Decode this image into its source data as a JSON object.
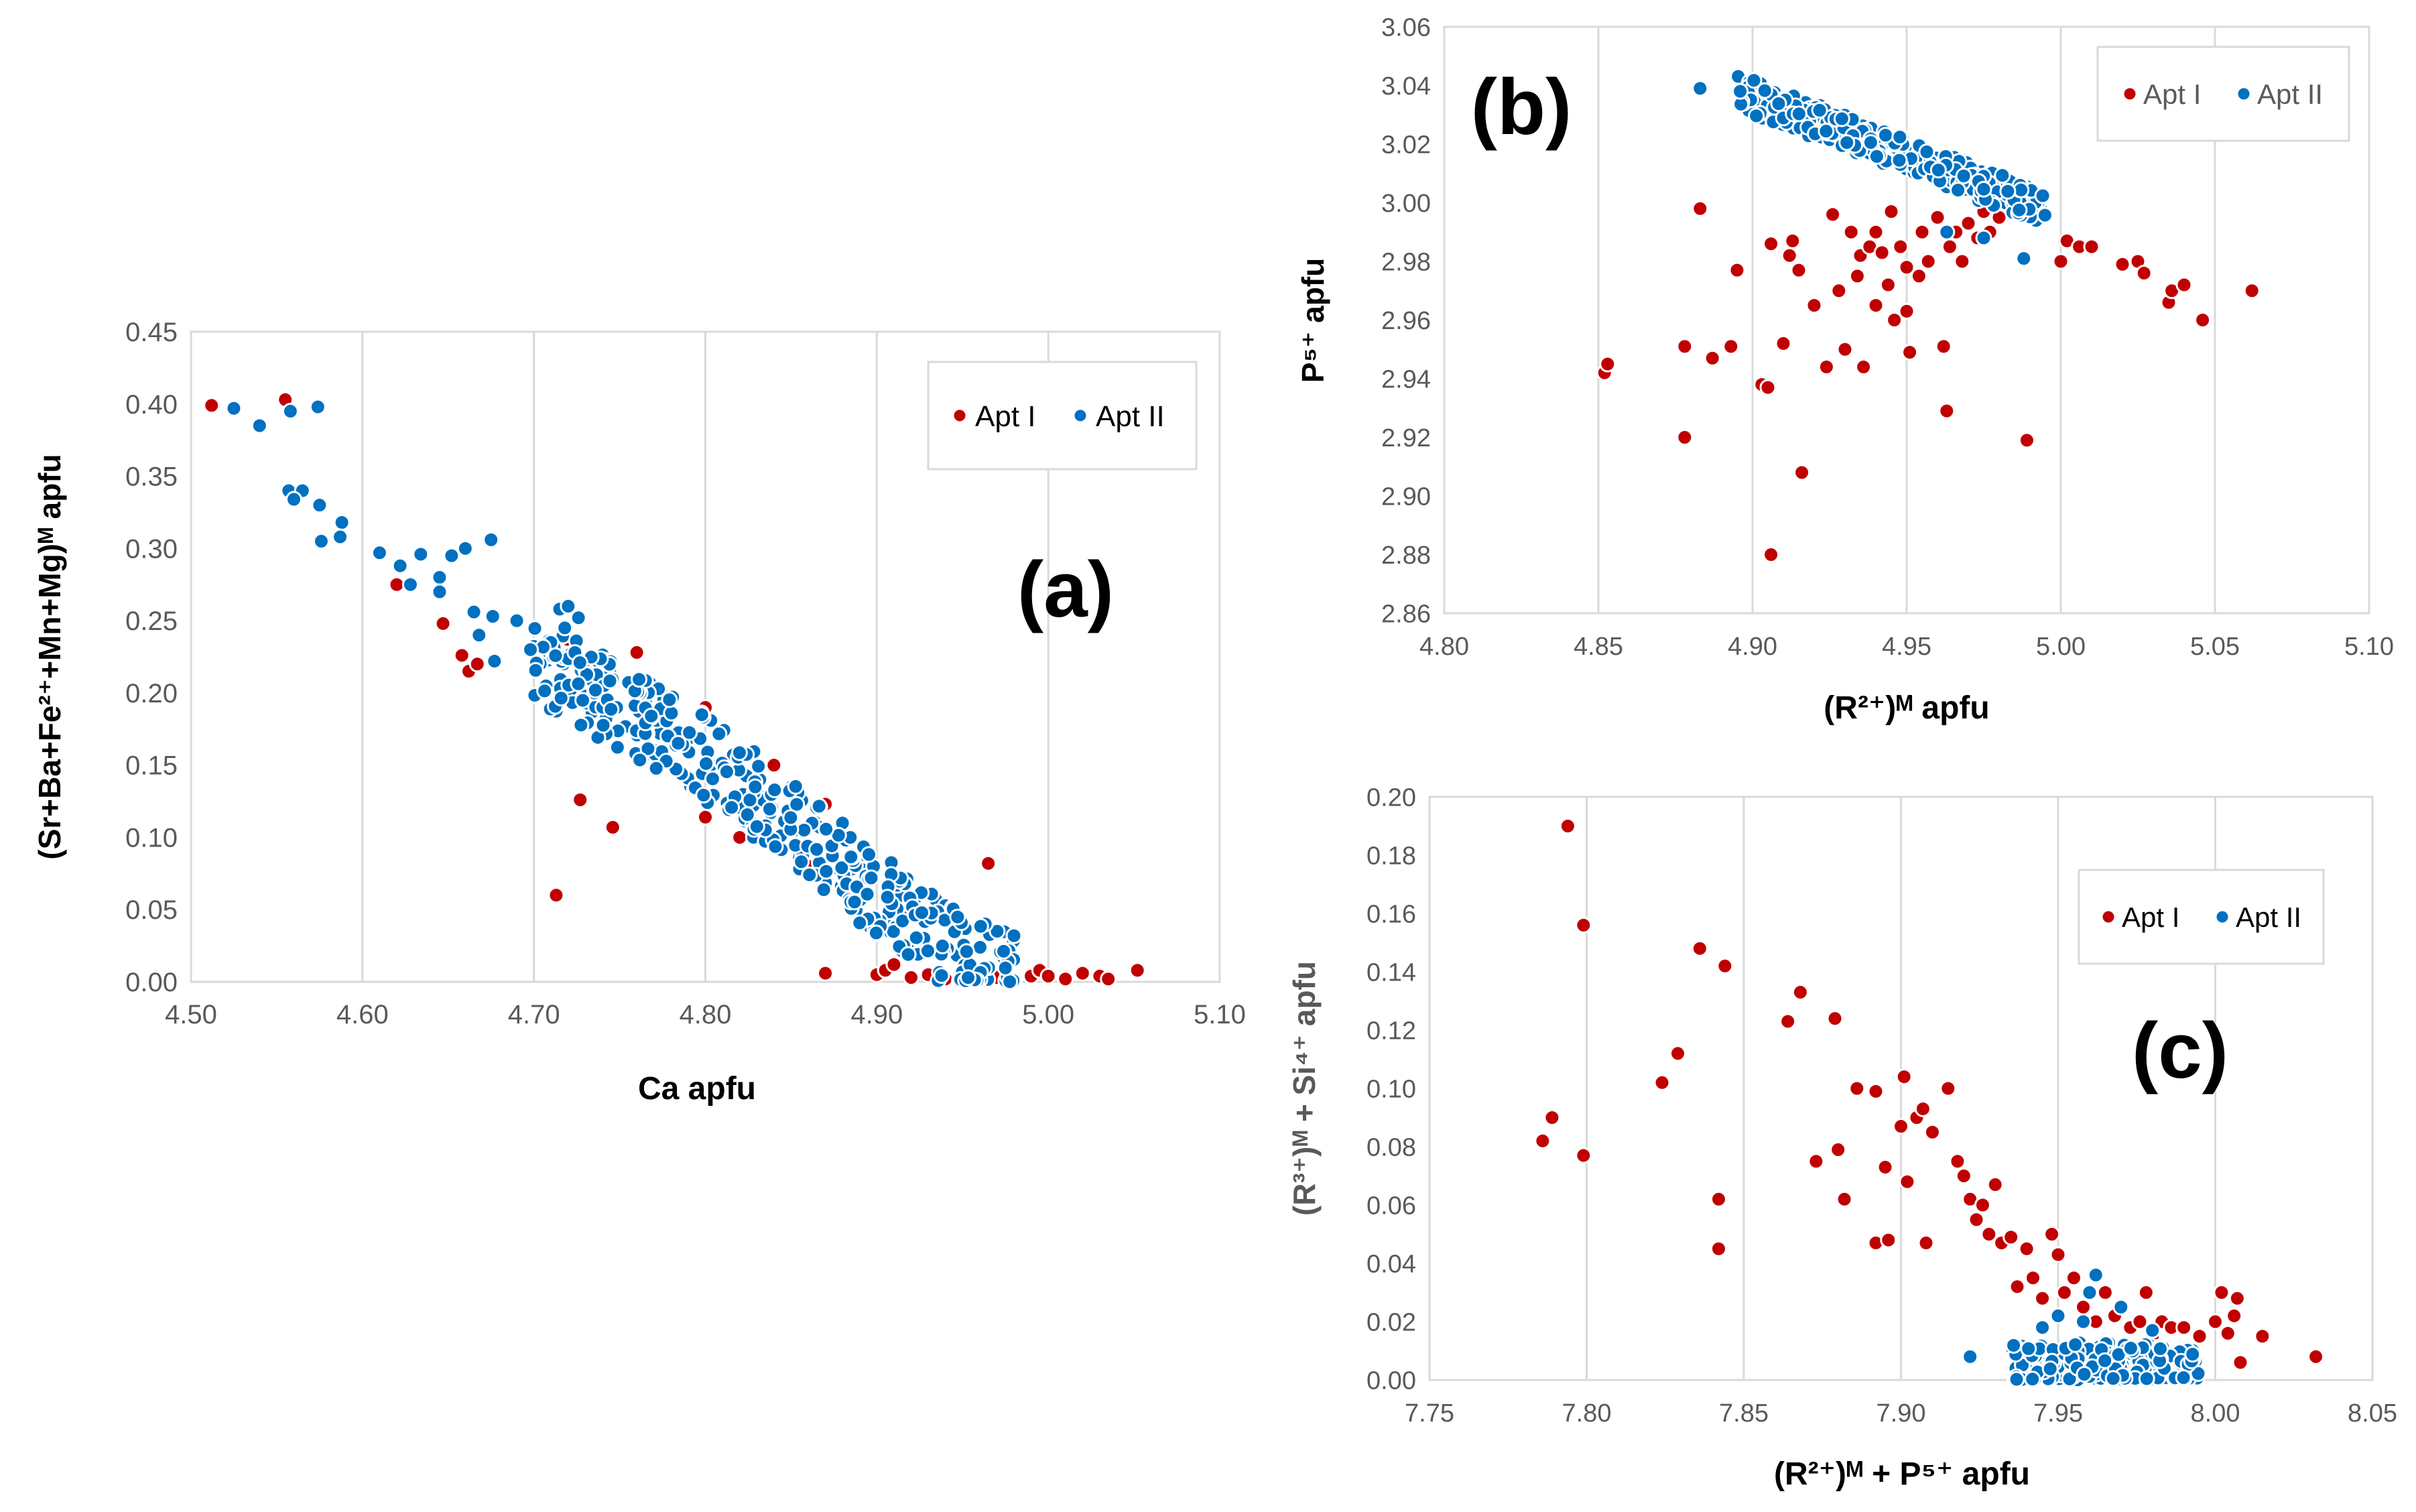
{
  "chart_data": [
    {
      "type": "scatter",
      "panel_label": "(a)",
      "xlabel": "Ca apfu",
      "ylabel": "(Sr+Ba+Fe²⁺+Mn+Mg)ᴹ apfu",
      "xlim": [
        4.5,
        5.1
      ],
      "ylim": [
        0,
        0.45
      ],
      "xticks": [
        "4.50",
        "4.60",
        "4.70",
        "4.80",
        "4.90",
        "5.00",
        "5.10"
      ],
      "yticks": [
        "0.00",
        "0.05",
        "0.10",
        "0.15",
        "0.20",
        "0.25",
        "0.30",
        "0.35",
        "0.40",
        "0.45"
      ],
      "legend": [
        "Apt I",
        "Apt II"
      ],
      "series": [
        {
          "name": "Apt I",
          "color": "#C00000",
          "points": [
            [
              4.512,
              0.399
            ],
            [
              4.555,
              0.403
            ],
            [
              4.62,
              0.275
            ],
            [
              4.647,
              0.248
            ],
            [
              4.658,
              0.226
            ],
            [
              4.662,
              0.215
            ],
            [
              4.667,
              0.22
            ],
            [
              4.713,
              0.06
            ],
            [
              4.727,
              0.126
            ],
            [
              4.746,
              0.107
            ],
            [
              4.72,
              0.196
            ],
            [
              4.72,
              0.237
            ],
            [
              4.76,
              0.228
            ],
            [
              4.8,
              0.19
            ],
            [
              4.8,
              0.114
            ],
            [
              4.82,
              0.1
            ],
            [
              4.84,
              0.15
            ],
            [
              4.86,
              0.08
            ],
            [
              4.87,
              0.006
            ],
            [
              4.87,
              0.123
            ],
            [
              4.9,
              0.005
            ],
            [
              4.905,
              0.008
            ],
            [
              4.91,
              0.012
            ],
            [
              4.92,
              0.003
            ],
            [
              4.93,
              0.005
            ],
            [
              4.94,
              0.002
            ],
            [
              4.95,
              0.004
            ],
            [
              4.965,
              0.082
            ],
            [
              4.97,
              0.003
            ],
            [
              4.98,
              0.002
            ],
            [
              4.99,
              0.004
            ],
            [
              4.995,
              0.008
            ],
            [
              5.0,
              0.004
            ],
            [
              5.01,
              0.002
            ],
            [
              5.02,
              0.006
            ],
            [
              5.03,
              0.004
            ],
            [
              5.035,
              0.002
            ],
            [
              5.052,
              0.008
            ]
          ]
        },
        {
          "name": "Apt II",
          "color": "#0070C0",
          "points": [
            [
              4.525,
              0.397
            ],
            [
              4.54,
              0.385
            ],
            [
              4.558,
              0.395
            ],
            [
              4.574,
              0.398
            ],
            [
              4.557,
              0.34
            ],
            [
              4.565,
              0.34
            ],
            [
              4.56,
              0.334
            ],
            [
              4.575,
              0.33
            ],
            [
              4.588,
              0.318
            ],
            [
              4.576,
              0.305
            ],
            [
              4.587,
              0.308
            ],
            [
              4.61,
              0.297
            ],
            [
              4.622,
              0.288
            ],
            [
              4.628,
              0.275
            ],
            [
              4.634,
              0.296
            ],
            [
              4.645,
              0.28
            ],
            [
              4.645,
              0.27
            ],
            [
              4.652,
              0.295
            ],
            [
              4.66,
              0.3
            ],
            [
              4.675,
              0.306
            ],
            [
              4.665,
              0.256
            ],
            [
              4.676,
              0.253
            ],
            [
              4.668,
              0.24
            ],
            [
              4.677,
              0.222
            ],
            [
              4.69,
              0.25
            ],
            [
              4.698,
              0.23
            ],
            [
              4.715,
              0.258
            ],
            [
              4.718,
              0.245
            ],
            [
              4.72,
              0.26
            ],
            [
              4.726,
              0.252
            ]
          ]
        }
      ],
      "dense_band": {
        "series": "Apt II",
        "description": "dense band of Apt II points (plotting positions interpolated along the trend)",
        "x_range": [
          4.7,
          4.98
        ],
        "trend": [
          [
            4.7,
            0.225
          ],
          [
            4.75,
            0.19
          ],
          [
            4.8,
            0.155
          ],
          [
            4.85,
            0.11
          ],
          [
            4.9,
            0.06
          ],
          [
            4.95,
            0.018
          ],
          [
            4.98,
            0.002
          ]
        ],
        "spread": 0.03
      }
    },
    {
      "type": "scatter",
      "panel_label": "(b)",
      "xlabel": "(R²⁺)ᴹ apfu",
      "ylabel": "P⁵⁺ apfu",
      "xlim": [
        4.8,
        5.1
      ],
      "ylim": [
        2.86,
        3.06
      ],
      "xticks": [
        "4.80",
        "4.85",
        "4.90",
        "4.95",
        "5.00",
        "5.05",
        "5.10"
      ],
      "yticks": [
        "2.86",
        "2.88",
        "2.90",
        "2.92",
        "2.94",
        "2.96",
        "2.98",
        "3.00",
        "3.02",
        "3.04",
        "3.06"
      ],
      "legend": [
        "Apt I",
        "Apt II"
      ],
      "series": [
        {
          "name": "Apt I",
          "color": "#C00000",
          "points": [
            [
              4.852,
              2.942
            ],
            [
              4.853,
              2.945
            ],
            [
              4.878,
              2.92
            ],
            [
              4.878,
              2.951
            ],
            [
              4.883,
              2.998
            ],
            [
              4.887,
              2.947
            ],
            [
              4.893,
              2.951
            ],
            [
              4.895,
              2.977
            ],
            [
              4.903,
              2.938
            ],
            [
              4.905,
              2.937
            ],
            [
              4.906,
              2.986
            ],
            [
              4.906,
              2.88
            ],
            [
              4.91,
              2.952
            ],
            [
              4.912,
              2.982
            ],
            [
              4.913,
              2.987
            ],
            [
              4.915,
              2.977
            ],
            [
              4.916,
              2.908
            ],
            [
              4.92,
              2.965
            ],
            [
              4.924,
              2.944
            ],
            [
              4.926,
              2.996
            ],
            [
              4.928,
              2.97
            ],
            [
              4.93,
              2.95
            ],
            [
              4.932,
              2.99
            ],
            [
              4.934,
              2.975
            ],
            [
              4.935,
              2.982
            ],
            [
              4.936,
              2.944
            ],
            [
              4.938,
              2.985
            ],
            [
              4.94,
              2.965
            ],
            [
              4.94,
              2.99
            ],
            [
              4.942,
              2.983
            ],
            [
              4.944,
              2.972
            ],
            [
              4.945,
              2.997
            ],
            [
              4.946,
              2.96
            ],
            [
              4.948,
              2.985
            ],
            [
              4.95,
              2.978
            ],
            [
              4.95,
              2.963
            ],
            [
              4.951,
              2.949
            ],
            [
              4.954,
              2.975
            ],
            [
              4.955,
              2.99
            ],
            [
              4.957,
              2.98
            ],
            [
              4.96,
              2.995
            ],
            [
              4.962,
              2.951
            ],
            [
              4.963,
              2.929
            ],
            [
              4.964,
              2.985
            ],
            [
              4.966,
              2.99
            ],
            [
              4.968,
              2.98
            ],
            [
              4.97,
              2.993
            ],
            [
              4.973,
              2.988
            ],
            [
              4.975,
              2.997
            ],
            [
              4.977,
              2.99
            ],
            [
              4.98,
              2.995
            ],
            [
              4.985,
              3.0
            ],
            [
              4.989,
              2.919
            ],
            [
              5.0,
              2.98
            ],
            [
              5.002,
              2.987
            ],
            [
              5.006,
              2.985
            ],
            [
              5.01,
              2.985
            ],
            [
              5.02,
              2.979
            ],
            [
              5.025,
              2.98
            ],
            [
              5.027,
              2.976
            ],
            [
              5.035,
              2.966
            ],
            [
              5.036,
              2.97
            ],
            [
              5.04,
              2.972
            ],
            [
              5.046,
              2.96
            ],
            [
              5.062,
              2.97
            ]
          ]
        },
        {
          "name": "Apt II",
          "color": "#0070C0",
          "points": [
            [
              4.883,
              3.039
            ],
            [
              4.896,
              3.038
            ],
            [
              4.963,
              2.99
            ],
            [
              4.975,
              2.988
            ],
            [
              4.988,
              2.981
            ]
          ]
        }
      ],
      "dense_band": {
        "series": "Apt II",
        "description": "dense band of Apt II points (plotting positions interpolated along the trend)",
        "x_range": [
          4.895,
          4.995
        ],
        "trend": [
          [
            4.895,
            3.038
          ],
          [
            4.92,
            3.028
          ],
          [
            4.94,
            3.02
          ],
          [
            4.96,
            3.012
          ],
          [
            4.98,
            3.004
          ],
          [
            4.995,
            2.998
          ]
        ],
        "spread": 0.006
      }
    },
    {
      "type": "scatter",
      "panel_label": "(c)",
      "xlabel": "(R²⁺)ᴹ + P⁵⁺ apfu",
      "ylabel": "(R³⁺)ᴹ + Si⁴⁺ apfu",
      "xlim": [
        7.75,
        8.05
      ],
      "ylim": [
        0,
        0.2
      ],
      "xticks": [
        "7.75",
        "7.80",
        "7.85",
        "7.90",
        "7.95",
        "8.00",
        "8.05"
      ],
      "yticks": [
        "0.00",
        "0.02",
        "0.04",
        "0.06",
        "0.08",
        "0.10",
        "0.12",
        "0.14",
        "0.16",
        "0.18",
        "0.20"
      ],
      "legend": [
        "Apt I",
        "Apt II"
      ],
      "series": [
        {
          "name": "Apt I",
          "color": "#C00000",
          "points": [
            [
              7.786,
              0.082
            ],
            [
              7.789,
              0.09
            ],
            [
              7.794,
              0.19
            ],
            [
              7.799,
              0.156
            ],
            [
              7.799,
              0.077
            ],
            [
              7.824,
              0.102
            ],
            [
              7.829,
              0.112
            ],
            [
              7.836,
              0.148
            ],
            [
              7.842,
              0.062
            ],
            [
              7.842,
              0.045
            ],
            [
              7.844,
              0.142
            ],
            [
              7.864,
              0.123
            ],
            [
              7.868,
              0.133
            ],
            [
              7.873,
              0.075
            ],
            [
              7.879,
              0.124
            ],
            [
              7.88,
              0.079
            ],
            [
              7.882,
              0.062
            ],
            [
              7.886,
              0.1
            ],
            [
              7.892,
              0.099
            ],
            [
              7.892,
              0.047
            ],
            [
              7.895,
              0.073
            ],
            [
              7.896,
              0.048
            ],
            [
              7.9,
              0.087
            ],
            [
              7.901,
              0.104
            ],
            [
              7.902,
              0.068
            ],
            [
              7.905,
              0.09
            ],
            [
              7.907,
              0.093
            ],
            [
              7.908,
              0.047
            ],
            [
              7.91,
              0.085
            ],
            [
              7.915,
              0.1
            ],
            [
              7.918,
              0.075
            ],
            [
              7.92,
              0.07
            ],
            [
              7.922,
              0.062
            ],
            [
              7.924,
              0.055
            ],
            [
              7.926,
              0.06
            ],
            [
              7.928,
              0.05
            ],
            [
              7.93,
              0.067
            ],
            [
              7.932,
              0.047
            ],
            [
              7.935,
              0.049
            ],
            [
              7.937,
              0.032
            ],
            [
              7.94,
              0.045
            ],
            [
              7.942,
              0.035
            ],
            [
              7.945,
              0.028
            ],
            [
              7.948,
              0.05
            ],
            [
              7.95,
              0.043
            ],
            [
              7.952,
              0.03
            ],
            [
              7.955,
              0.035
            ],
            [
              7.958,
              0.025
            ],
            [
              7.96,
              0.03
            ],
            [
              7.962,
              0.02
            ],
            [
              7.965,
              0.03
            ],
            [
              7.968,
              0.022
            ],
            [
              7.97,
              0.025
            ],
            [
              7.973,
              0.018
            ],
            [
              7.976,
              0.02
            ],
            [
              7.978,
              0.03
            ],
            [
              7.98,
              0.015
            ],
            [
              7.983,
              0.02
            ],
            [
              7.986,
              0.018
            ],
            [
              7.99,
              0.018
            ],
            [
              7.995,
              0.015
            ],
            [
              8.0,
              0.02
            ],
            [
              8.002,
              0.03
            ],
            [
              8.004,
              0.016
            ],
            [
              8.006,
              0.022
            ],
            [
              8.007,
              0.028
            ],
            [
              8.008,
              0.006
            ],
            [
              8.015,
              0.015
            ],
            [
              8.032,
              0.008
            ]
          ]
        },
        {
          "name": "Apt II",
          "color": "#0070C0",
          "points": [
            [
              7.922,
              0.008
            ],
            [
              7.962,
              0.036
            ],
            [
              7.95,
              0.022
            ],
            [
              7.96,
              0.03
            ],
            [
              7.945,
              0.018
            ],
            [
              7.97,
              0.025
            ],
            [
              7.98,
              0.017
            ],
            [
              7.958,
              0.02
            ]
          ]
        }
      ],
      "dense_band": {
        "series": "Apt II",
        "description": "dense band of Apt II points (plotting positions interpolated along the trend)",
        "x_range": [
          7.935,
          7.995
        ],
        "trend": [
          [
            7.935,
            0.004
          ],
          [
            7.965,
            0.005
          ],
          [
            7.995,
            0.003
          ]
        ],
        "spread": 0.008
      }
    }
  ]
}
